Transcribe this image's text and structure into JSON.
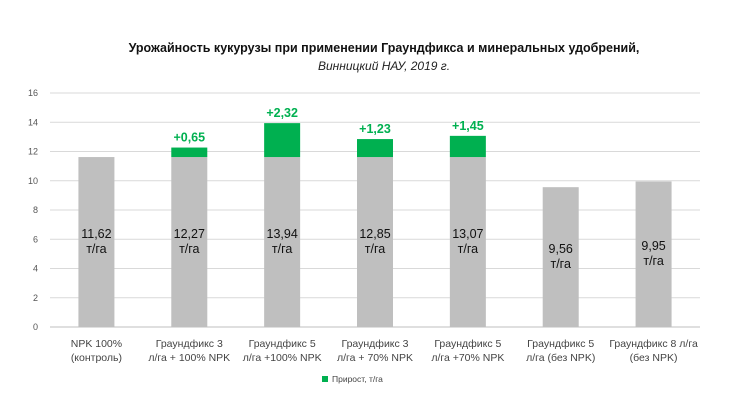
{
  "chart_data": {
    "type": "bar",
    "title": "Урожайность кукурузы при применении Граундфикса и минеральных удобрений,",
    "subtitle": "Винницкий НАУ, 2019 г.",
    "categories": [
      [
        "NPK 100%",
        "(контроль)"
      ],
      [
        "Граундфикс 3",
        "л/га + 100% NPK"
      ],
      [
        "Граундфикс 5",
        "л/га +100% NPK"
      ],
      [
        "Граундфикс 3",
        "л/га + 70% NPK"
      ],
      [
        "Граундфикс 5",
        "л/га +70% NPK"
      ],
      [
        "Граундфикс 5",
        "л/га (без NPK)"
      ],
      [
        "Граундфикс 8 л/га",
        "(без NPK)"
      ]
    ],
    "series": [
      {
        "values": [
          11.62,
          11.62,
          11.62,
          11.62,
          11.62,
          9.56,
          9.95
        ],
        "color": "#bfbfbf"
      },
      {
        "name": "Прирост, т/га",
        "values": [
          0,
          0.65,
          2.32,
          1.23,
          1.45,
          0,
          0
        ],
        "color": "#00b050"
      }
    ],
    "value_labels": [
      [
        "11,62",
        "т/га"
      ],
      [
        "12,27",
        "т/га"
      ],
      [
        "13,94",
        "т/га"
      ],
      [
        "12,85",
        "т/га"
      ],
      [
        "13,07",
        "т/га"
      ],
      [
        "9,56",
        "т/га"
      ],
      [
        "9,95",
        "т/га"
      ]
    ],
    "increase_labels": [
      "",
      "+0,65",
      "+2,32",
      "+1,23",
      "+1,45",
      "",
      ""
    ],
    "yticks": [
      "0",
      "2",
      "4",
      "6",
      "8",
      "10",
      "12",
      "14",
      "16"
    ],
    "ylim": [
      0,
      16
    ],
    "grid": true,
    "legend_position": "bottom-center",
    "increase_label_color": "#00b050"
  }
}
